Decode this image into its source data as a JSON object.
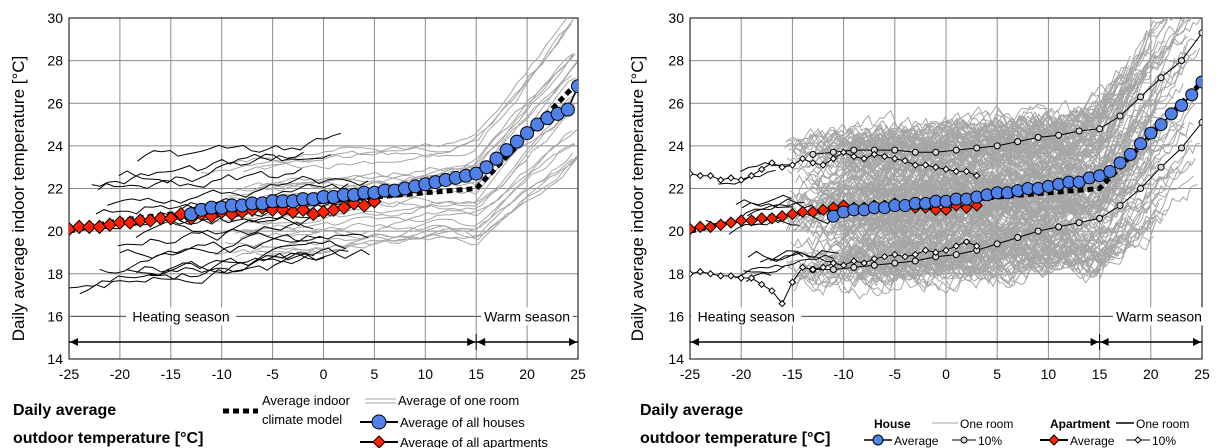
{
  "chart_data": [
    {
      "type": "line",
      "ylabel": "Daily average indoor temperature [°C]",
      "xlabel_line1": "Daily average",
      "xlabel_line2": "outdoor temperature [°C]",
      "xlim": [
        -25,
        25
      ],
      "ylim": [
        14,
        30
      ],
      "xticks": [
        "-25",
        "-20",
        "-15",
        "-10",
        "-5",
        "0",
        "5",
        "10",
        "15",
        "20",
        "25"
      ],
      "yticks": [
        "14",
        "16",
        "18",
        "20",
        "22",
        "24",
        "26",
        "28",
        "30"
      ],
      "grid": true,
      "seasons": {
        "heating": "Heating season",
        "warm": "Warm season",
        "boundary": 15
      },
      "legend": {
        "model_line1": "Average indoor",
        "model_line2": "climate model",
        "one_room": "Average of one room",
        "houses": "Average of all houses",
        "apartments": "Average of all apartments"
      },
      "series": [
        {
          "name": "Average indoor climate model",
          "x": [
            -25,
            -20,
            -15,
            -10,
            -5,
            0,
            5,
            10,
            15,
            20,
            25
          ],
          "y": [
            20.0,
            20.5,
            20.8,
            21.0,
            21.2,
            21.4,
            21.6,
            21.8,
            22.0,
            24.5,
            27.0
          ]
        },
        {
          "name": "Average of all houses",
          "x": [
            -13,
            -12,
            -11,
            -10,
            -9,
            -8,
            -7,
            -6,
            -5,
            -4,
            -3,
            -2,
            -1,
            0,
            1,
            2,
            3,
            4,
            5,
            6,
            7,
            8,
            9,
            10,
            11,
            12,
            13,
            14,
            15,
            16,
            17,
            18,
            19,
            20,
            21,
            22,
            23,
            24,
            25
          ],
          "y": [
            20.8,
            21.0,
            21.1,
            21.1,
            21.2,
            21.2,
            21.3,
            21.3,
            21.4,
            21.4,
            21.4,
            21.5,
            21.5,
            21.6,
            21.6,
            21.7,
            21.7,
            21.8,
            21.8,
            21.9,
            21.9,
            22.0,
            22.1,
            22.2,
            22.3,
            22.4,
            22.5,
            22.6,
            22.7,
            23.0,
            23.4,
            23.8,
            24.2,
            24.6,
            25.0,
            25.3,
            25.5,
            25.7,
            26.8
          ]
        },
        {
          "name": "Average of all apartments",
          "x": [
            -25,
            -24,
            -23,
            -22,
            -21,
            -20,
            -19,
            -18,
            -17,
            -16,
            -15,
            -14,
            -13,
            -12,
            -11,
            -10,
            -9,
            -8,
            -7,
            -6,
            -5,
            -4,
            -3,
            -2,
            -1,
            0,
            1,
            2,
            3,
            4,
            5
          ],
          "y": [
            20.1,
            20.2,
            20.2,
            20.2,
            20.3,
            20.4,
            20.4,
            20.5,
            20.5,
            20.6,
            20.6,
            20.8,
            20.6,
            20.8,
            20.7,
            20.9,
            20.8,
            20.9,
            21.0,
            21.1,
            21.0,
            21.0,
            20.9,
            21.0,
            20.8,
            20.9,
            21.0,
            21.1,
            21.3,
            21.2,
            21.4
          ]
        }
      ]
    },
    {
      "type": "line",
      "ylabel": "Daily average indoor temperature [°C]",
      "xlabel_line1": "Daily average",
      "xlabel_line2": "outdoor temperature [°C]",
      "xlim": [
        -25,
        25
      ],
      "ylim": [
        14,
        30
      ],
      "xticks": [
        "-25",
        "-20",
        "-15",
        "-10",
        "-5",
        "0",
        "5",
        "10",
        "15",
        "20",
        "25"
      ],
      "yticks": [
        "14",
        "16",
        "18",
        "20",
        "22",
        "24",
        "26",
        "28",
        "30"
      ],
      "grid": true,
      "seasons": {
        "heating": "Heating season",
        "warm": "Warm season",
        "boundary": 15
      },
      "legend": {
        "house": "House",
        "apartment": "Apartment",
        "one_room": "One room",
        "average": "Average",
        "ten_percent": "10%"
      },
      "series": [
        {
          "name": "Average indoor climate model",
          "x": [
            -25,
            -20,
            -15,
            -10,
            -5,
            0,
            5,
            10,
            15,
            20,
            25
          ],
          "y": [
            20.0,
            20.5,
            20.8,
            21.0,
            21.2,
            21.4,
            21.6,
            21.8,
            22.0,
            24.5,
            27.0
          ]
        },
        {
          "name": "House Average",
          "x": [
            -11,
            -10,
            -9,
            -8,
            -7,
            -6,
            -5,
            -4,
            -3,
            -2,
            -1,
            0,
            1,
            2,
            3,
            4,
            5,
            6,
            7,
            8,
            9,
            10,
            11,
            12,
            13,
            14,
            15,
            16,
            17,
            18,
            19,
            20,
            21,
            22,
            23,
            24,
            25
          ],
          "y": [
            20.7,
            20.9,
            21.0,
            21.0,
            21.1,
            21.1,
            21.2,
            21.2,
            21.3,
            21.3,
            21.4,
            21.4,
            21.5,
            21.5,
            21.6,
            21.7,
            21.8,
            21.8,
            21.9,
            22.0,
            22.0,
            22.1,
            22.2,
            22.3,
            22.3,
            22.5,
            22.6,
            22.8,
            23.2,
            23.6,
            24.1,
            24.6,
            25.0,
            25.5,
            25.9,
            26.4,
            27.0
          ]
        },
        {
          "name": "Apartment Average",
          "x": [
            -25,
            -24,
            -23,
            -22,
            -21,
            -20,
            -19,
            -18,
            -17,
            -16,
            -15,
            -14,
            -13,
            -12,
            -11,
            -10,
            -9,
            -8,
            -7,
            -6,
            -5,
            -4,
            -3,
            -2,
            -1,
            0,
            1,
            2,
            3
          ],
          "y": [
            20.1,
            20.2,
            20.2,
            20.3,
            20.4,
            20.5,
            20.5,
            20.6,
            20.6,
            20.7,
            20.8,
            20.9,
            20.9,
            21.0,
            21.1,
            21.2,
            21.1,
            21.1,
            21.2,
            21.2,
            21.3,
            21.2,
            21.1,
            21.1,
            21.0,
            21.0,
            21.2,
            21.1,
            21.2
          ]
        },
        {
          "name": "House 10% upper",
          "x": [
            -13,
            -11,
            -9,
            -7,
            -5,
            -3,
            -1,
            1,
            3,
            5,
            7,
            9,
            11,
            13,
            15,
            17,
            19,
            21,
            23,
            25
          ],
          "y": [
            23.6,
            23.7,
            23.8,
            23.8,
            23.8,
            23.7,
            23.7,
            23.8,
            23.9,
            24.0,
            24.2,
            24.4,
            24.5,
            24.7,
            24.8,
            25.4,
            26.3,
            27.2,
            28.0,
            29.3
          ]
        },
        {
          "name": "House 10% lower",
          "x": [
            -13,
            -11,
            -9,
            -7,
            -5,
            -3,
            -1,
            1,
            3,
            5,
            7,
            9,
            11,
            13,
            15,
            17,
            19,
            21,
            23,
            25
          ],
          "y": [
            18.2,
            18.2,
            18.3,
            18.4,
            18.5,
            18.6,
            18.8,
            18.9,
            19.1,
            19.4,
            19.7,
            20.0,
            20.2,
            20.4,
            20.6,
            21.2,
            22.0,
            23.0,
            23.9,
            25.1
          ]
        },
        {
          "name": "Apartment 10% upper",
          "x": [
            -25,
            -24,
            -23,
            -22,
            -21,
            -20,
            -19,
            -18,
            -17,
            -16,
            -15,
            -14,
            -13,
            -12,
            -11,
            -10,
            -9,
            -8,
            -7,
            -6,
            -5,
            -4,
            -3,
            -2,
            -1,
            0,
            1,
            2,
            3
          ],
          "y": [
            22.7,
            22.6,
            22.6,
            22.4,
            22.5,
            22.4,
            22.6,
            22.9,
            23.2,
            23.0,
            23.1,
            23.4,
            23.2,
            23.1,
            23.4,
            23.7,
            23.5,
            23.4,
            23.6,
            23.5,
            23.4,
            23.3,
            23.1,
            23.1,
            23.0,
            22.9,
            22.8,
            22.8,
            22.6
          ]
        },
        {
          "name": "Apartment 10% lower",
          "x": [
            -25,
            -24,
            -23,
            -22,
            -21,
            -20,
            -19,
            -18,
            -17,
            -16,
            -15,
            -14,
            -13,
            -12,
            -11,
            -10,
            -9,
            -8,
            -7,
            -6,
            -5,
            -4,
            -3,
            -2,
            -1,
            0,
            1,
            2,
            3
          ],
          "y": [
            18.0,
            18.1,
            18.0,
            17.9,
            17.9,
            17.8,
            17.8,
            17.5,
            17.2,
            16.6,
            17.6,
            18.3,
            18.2,
            18.3,
            18.5,
            18.4,
            18.6,
            18.5,
            18.7,
            18.8,
            18.9,
            18.8,
            18.9,
            19.1,
            19.0,
            19.1,
            19.3,
            19.5,
            19.3
          ]
        }
      ]
    }
  ]
}
